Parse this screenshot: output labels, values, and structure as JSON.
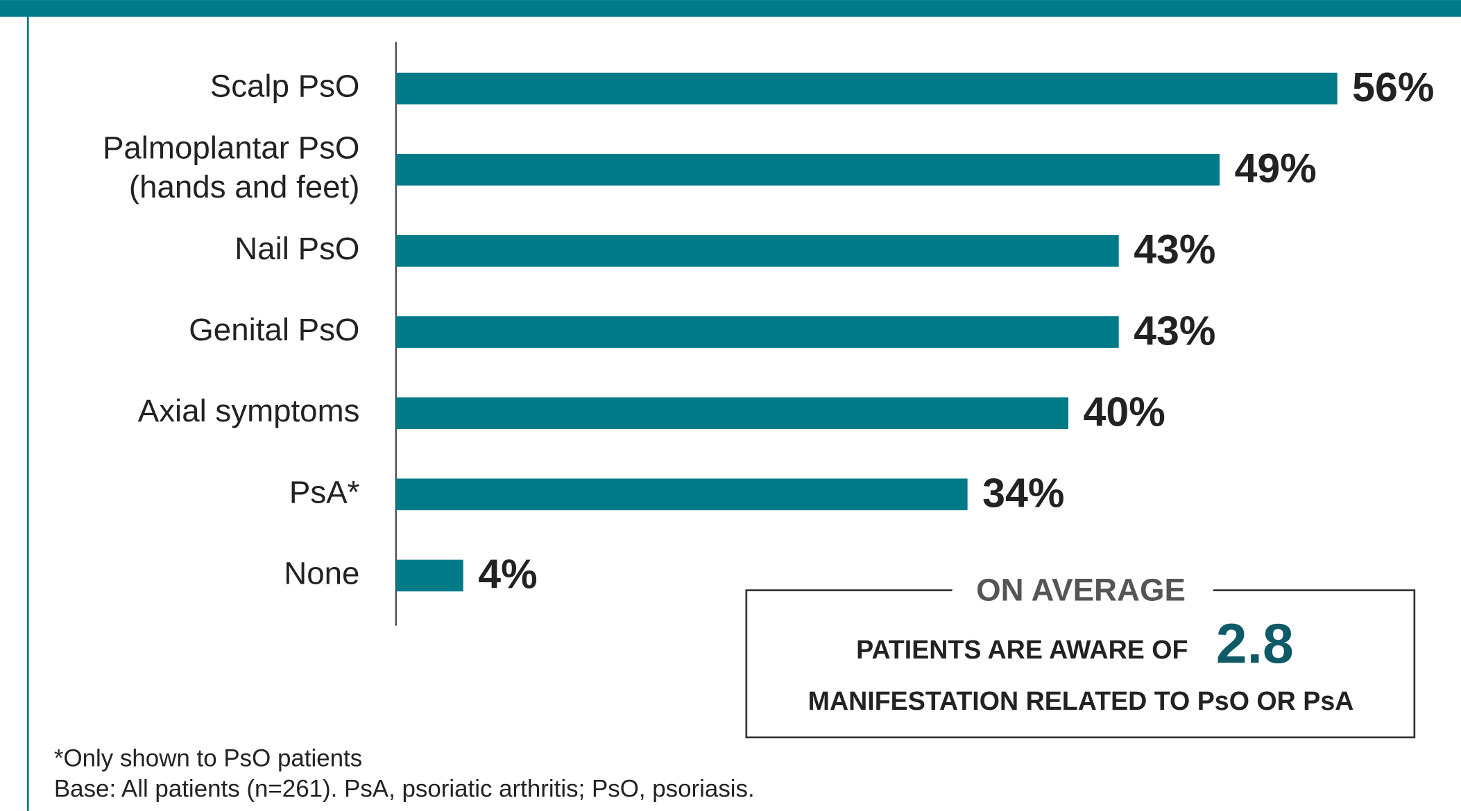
{
  "chart_data": {
    "type": "barh",
    "categories": [
      "Scalp PsO",
      "Palmoplantar PsO\n(hands and feet)",
      "Nail PsO",
      "Genital PsO",
      "Axial symptoms",
      "PsA*",
      "None"
    ],
    "values": [
      56,
      49,
      43,
      43,
      40,
      34,
      4
    ],
    "value_labels": [
      "56%",
      "49%",
      "43%",
      "43%",
      "40%",
      "34%",
      "4%"
    ],
    "color": "#007a87",
    "annotation": {
      "heading": "ON AVERAGE",
      "line1": "PATIENTS ARE AWARE OF",
      "number": "2.8",
      "line2": "MANIFESTATION RELATED TO PsO OR PsA"
    },
    "footnotes": [
      "*Only shown to PsO patients",
      "Base: All patients (n=261). PsA, psoriatic arthritis; PsO, psoriasis."
    ]
  }
}
